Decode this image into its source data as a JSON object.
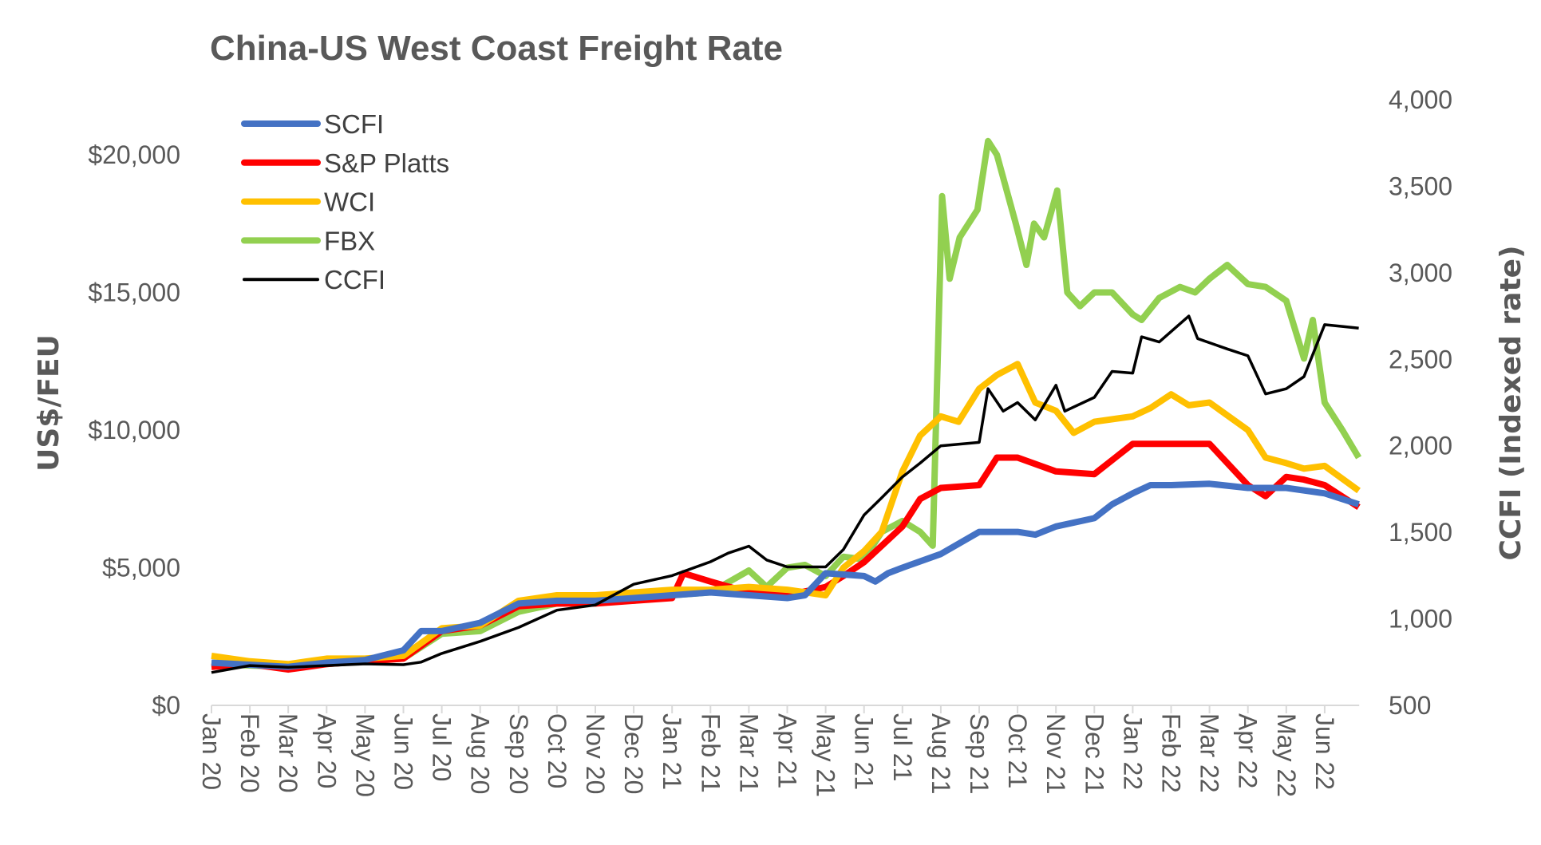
{
  "chart_data": {
    "type": "line",
    "title": "China-US West Coast Freight Rate",
    "ylabel": "US$/FEU",
    "y2label": "CCFI (Indexed rate)",
    "ylim": [
      0,
      22000
    ],
    "y2lim": [
      500,
      4000
    ],
    "yticks": [
      "$0",
      "$5,000",
      "$10,000",
      "$15,000",
      "$20,000"
    ],
    "y2ticks": [
      "500",
      "1,000",
      "1,500",
      "2,000",
      "2,500",
      "3,000",
      "3,500",
      "4,000"
    ],
    "xticks": [
      "Jan 20",
      "Feb 20",
      "Mar 20",
      "Apr 20",
      "May 20",
      "Jun 20",
      "Jul 20",
      "Aug 20",
      "Sep 20",
      "Oct 20",
      "Nov 20",
      "Dec 20",
      "Jan 21",
      "Feb 21",
      "Mar 21",
      "Apr 21",
      "May 21",
      "Jun 21",
      "Jul 21",
      "Aug 21",
      "Sep 21",
      "Oct 21",
      "Nov 21",
      "Dec 21",
      "Jan 22",
      "Feb 22",
      "Mar 22",
      "Apr 22",
      "May 22",
      "Jun 22"
    ],
    "grid": false,
    "legend_position": "top-left",
    "series": [
      {
        "name": "SCFI",
        "color": "#4472C4",
        "axis": "left",
        "points": [
          [
            "2020-01-01",
            1550
          ],
          [
            "2020-03-01",
            1400
          ],
          [
            "2020-04-01",
            1550
          ],
          [
            "2020-05-01",
            1650
          ],
          [
            "2020-06-01",
            2000
          ],
          [
            "2020-06-15",
            2700
          ],
          [
            "2020-07-01",
            2700
          ],
          [
            "2020-08-01",
            3000
          ],
          [
            "2020-09-01",
            3700
          ],
          [
            "2020-10-01",
            3800
          ],
          [
            "2020-11-01",
            3800
          ],
          [
            "2020-12-01",
            3900
          ],
          [
            "2021-01-01",
            4000
          ],
          [
            "2021-02-01",
            4100
          ],
          [
            "2021-03-01",
            4000
          ],
          [
            "2021-04-01",
            3900
          ],
          [
            "2021-04-15",
            4000
          ],
          [
            "2021-05-01",
            4800
          ],
          [
            "2021-06-01",
            4700
          ],
          [
            "2021-06-10",
            4500
          ],
          [
            "2021-06-20",
            4800
          ],
          [
            "2021-07-01",
            5000
          ],
          [
            "2021-08-01",
            5500
          ],
          [
            "2021-09-01",
            6300
          ],
          [
            "2021-10-01",
            6300
          ],
          [
            "2021-10-15",
            6200
          ],
          [
            "2021-11-01",
            6500
          ],
          [
            "2021-12-01",
            6800
          ],
          [
            "2021-12-15",
            7300
          ],
          [
            "2022-01-01",
            7700
          ],
          [
            "2022-01-15",
            8000
          ],
          [
            "2022-02-01",
            8000
          ],
          [
            "2022-03-01",
            8050
          ],
          [
            "2022-04-01",
            7900
          ],
          [
            "2022-05-01",
            7900
          ],
          [
            "2022-06-01",
            7700
          ],
          [
            "2022-06-28",
            7300
          ]
        ]
      },
      {
        "name": "S&P Platts",
        "color": "#FF0000",
        "axis": "left",
        "points": [
          [
            "2020-01-01",
            1400
          ],
          [
            "2020-02-01",
            1500
          ],
          [
            "2020-03-01",
            1300
          ],
          [
            "2020-04-01",
            1500
          ],
          [
            "2020-05-01",
            1600
          ],
          [
            "2020-06-01",
            1700
          ],
          [
            "2020-07-01",
            2700
          ],
          [
            "2020-08-01",
            2900
          ],
          [
            "2020-09-01",
            3600
          ],
          [
            "2020-10-01",
            3700
          ],
          [
            "2020-11-01",
            3700
          ],
          [
            "2020-12-01",
            3800
          ],
          [
            "2021-01-01",
            3900
          ],
          [
            "2021-01-10",
            4800
          ],
          [
            "2021-02-01",
            4500
          ],
          [
            "2021-03-01",
            4100
          ],
          [
            "2021-04-01",
            4000
          ],
          [
            "2021-05-01",
            4300
          ],
          [
            "2021-05-15",
            4700
          ],
          [
            "2021-06-01",
            5200
          ],
          [
            "2021-06-15",
            5800
          ],
          [
            "2021-07-01",
            6500
          ],
          [
            "2021-07-15",
            7500
          ],
          [
            "2021-08-01",
            7900
          ],
          [
            "2021-09-01",
            8000
          ],
          [
            "2021-09-15",
            9000
          ],
          [
            "2021-10-01",
            9000
          ],
          [
            "2021-11-01",
            8500
          ],
          [
            "2021-12-01",
            8400
          ],
          [
            "2022-01-01",
            9500
          ],
          [
            "2022-02-01",
            9500
          ],
          [
            "2022-03-01",
            9500
          ],
          [
            "2022-04-01",
            8000
          ],
          [
            "2022-04-15",
            7600
          ],
          [
            "2022-05-01",
            8300
          ],
          [
            "2022-05-15",
            8200
          ],
          [
            "2022-06-01",
            8000
          ],
          [
            "2022-06-28",
            7200
          ]
        ]
      },
      {
        "name": "WCI",
        "color": "#FFC000",
        "axis": "left",
        "points": [
          [
            "2020-01-01",
            1800
          ],
          [
            "2020-02-01",
            1600
          ],
          [
            "2020-03-01",
            1500
          ],
          [
            "2020-04-01",
            1700
          ],
          [
            "2020-05-01",
            1700
          ],
          [
            "2020-06-01",
            1800
          ],
          [
            "2020-07-01",
            2800
          ],
          [
            "2020-08-01",
            2900
          ],
          [
            "2020-09-01",
            3800
          ],
          [
            "2020-10-01",
            4000
          ],
          [
            "2020-11-01",
            4000
          ],
          [
            "2020-12-01",
            4100
          ],
          [
            "2021-01-01",
            4200
          ],
          [
            "2021-02-01",
            4200
          ],
          [
            "2021-03-01",
            4300
          ],
          [
            "2021-04-01",
            4200
          ],
          [
            "2021-05-01",
            4000
          ],
          [
            "2021-05-15",
            5000
          ],
          [
            "2021-06-01",
            5600
          ],
          [
            "2021-06-15",
            6300
          ],
          [
            "2021-07-01",
            8500
          ],
          [
            "2021-07-15",
            9800
          ],
          [
            "2021-08-01",
            10500
          ],
          [
            "2021-08-15",
            10300
          ],
          [
            "2021-09-01",
            11500
          ],
          [
            "2021-09-15",
            12000
          ],
          [
            "2021-10-01",
            12400
          ],
          [
            "2021-10-15",
            11000
          ],
          [
            "2021-11-01",
            10700
          ],
          [
            "2021-11-15",
            9900
          ],
          [
            "2021-12-01",
            10300
          ],
          [
            "2022-01-01",
            10500
          ],
          [
            "2022-01-15",
            10800
          ],
          [
            "2022-02-01",
            11300
          ],
          [
            "2022-02-15",
            10900
          ],
          [
            "2022-03-01",
            11000
          ],
          [
            "2022-04-01",
            10000
          ],
          [
            "2022-04-15",
            9000
          ],
          [
            "2022-05-01",
            8800
          ],
          [
            "2022-05-15",
            8600
          ],
          [
            "2022-06-01",
            8700
          ],
          [
            "2022-06-28",
            7800
          ]
        ]
      },
      {
        "name": "FBX",
        "color": "#92D050",
        "axis": "left",
        "points": [
          [
            "2020-01-01",
            1500
          ],
          [
            "2020-03-01",
            1400
          ],
          [
            "2020-06-01",
            1700
          ],
          [
            "2020-07-01",
            2600
          ],
          [
            "2020-08-01",
            2700
          ],
          [
            "2020-09-01",
            3400
          ],
          [
            "2020-10-01",
            3700
          ],
          [
            "2020-11-01",
            3800
          ],
          [
            "2020-12-01",
            3800
          ],
          [
            "2021-01-01",
            4000
          ],
          [
            "2021-02-01",
            4100
          ],
          [
            "2021-03-01",
            4900
          ],
          [
            "2021-03-15",
            4300
          ],
          [
            "2021-04-01",
            5000
          ],
          [
            "2021-04-15",
            5100
          ],
          [
            "2021-05-01",
            4700
          ],
          [
            "2021-05-15",
            5400
          ],
          [
            "2021-06-01",
            5300
          ],
          [
            "2021-06-15",
            6300
          ],
          [
            "2021-07-01",
            6700
          ],
          [
            "2021-07-15",
            6300
          ],
          [
            "2021-07-25",
            5800
          ],
          [
            "2021-08-02",
            18500
          ],
          [
            "2021-08-08",
            15500
          ],
          [
            "2021-08-16",
            17000
          ],
          [
            "2021-08-30",
            18000
          ],
          [
            "2021-09-08",
            20500
          ],
          [
            "2021-09-15",
            20000
          ],
          [
            "2021-09-30",
            17500
          ],
          [
            "2021-10-08",
            16000
          ],
          [
            "2021-10-14",
            17500
          ],
          [
            "2021-10-22",
            17000
          ],
          [
            "2021-11-02",
            18700
          ],
          [
            "2021-11-10",
            15000
          ],
          [
            "2021-11-20",
            14500
          ],
          [
            "2021-12-01",
            15000
          ],
          [
            "2021-12-15",
            15000
          ],
          [
            "2022-01-01",
            14200
          ],
          [
            "2022-01-08",
            14000
          ],
          [
            "2022-01-22",
            14800
          ],
          [
            "2022-02-08",
            15200
          ],
          [
            "2022-02-20",
            15000
          ],
          [
            "2022-03-01",
            15500
          ],
          [
            "2022-03-15",
            16000
          ],
          [
            "2022-04-01",
            15300
          ],
          [
            "2022-04-15",
            15200
          ],
          [
            "2022-05-01",
            14700
          ],
          [
            "2022-05-15",
            12600
          ],
          [
            "2022-05-22",
            14000
          ],
          [
            "2022-06-01",
            11000
          ],
          [
            "2022-06-15",
            10000
          ],
          [
            "2022-06-28",
            9000
          ]
        ]
      },
      {
        "name": "CCFI",
        "color": "#000000",
        "axis": "right",
        "points": [
          [
            "2020-01-01",
            690
          ],
          [
            "2020-02-01",
            730
          ],
          [
            "2020-03-01",
            720
          ],
          [
            "2020-04-01",
            730
          ],
          [
            "2020-05-01",
            740
          ],
          [
            "2020-06-01",
            735
          ],
          [
            "2020-06-15",
            750
          ],
          [
            "2020-07-01",
            800
          ],
          [
            "2020-08-01",
            870
          ],
          [
            "2020-09-01",
            950
          ],
          [
            "2020-10-01",
            1050
          ],
          [
            "2020-11-01",
            1080
          ],
          [
            "2020-12-01",
            1200
          ],
          [
            "2021-01-01",
            1250
          ],
          [
            "2021-02-01",
            1330
          ],
          [
            "2021-02-15",
            1380
          ],
          [
            "2021-03-01",
            1420
          ],
          [
            "2021-03-15",
            1340
          ],
          [
            "2021-04-01",
            1300
          ],
          [
            "2021-05-01",
            1300
          ],
          [
            "2021-05-15",
            1400
          ],
          [
            "2021-06-01",
            1600
          ],
          [
            "2021-06-15",
            1700
          ],
          [
            "2021-07-01",
            1820
          ],
          [
            "2021-07-15",
            1900
          ],
          [
            "2021-08-01",
            2000
          ],
          [
            "2021-09-01",
            2020
          ],
          [
            "2021-09-08",
            2330
          ],
          [
            "2021-09-20",
            2200
          ],
          [
            "2021-10-01",
            2250
          ],
          [
            "2021-10-15",
            2150
          ],
          [
            "2021-11-01",
            2350
          ],
          [
            "2021-11-08",
            2200
          ],
          [
            "2021-12-01",
            2280
          ],
          [
            "2021-12-15",
            2430
          ],
          [
            "2022-01-01",
            2420
          ],
          [
            "2022-01-08",
            2630
          ],
          [
            "2022-01-22",
            2600
          ],
          [
            "2022-02-15",
            2750
          ],
          [
            "2022-02-22",
            2620
          ],
          [
            "2022-03-15",
            2560
          ],
          [
            "2022-04-01",
            2520
          ],
          [
            "2022-04-15",
            2300
          ],
          [
            "2022-05-01",
            2330
          ],
          [
            "2022-05-15",
            2400
          ],
          [
            "2022-06-01",
            2700
          ],
          [
            "2022-06-15",
            2690
          ],
          [
            "2022-06-28",
            2680
          ]
        ]
      }
    ]
  }
}
